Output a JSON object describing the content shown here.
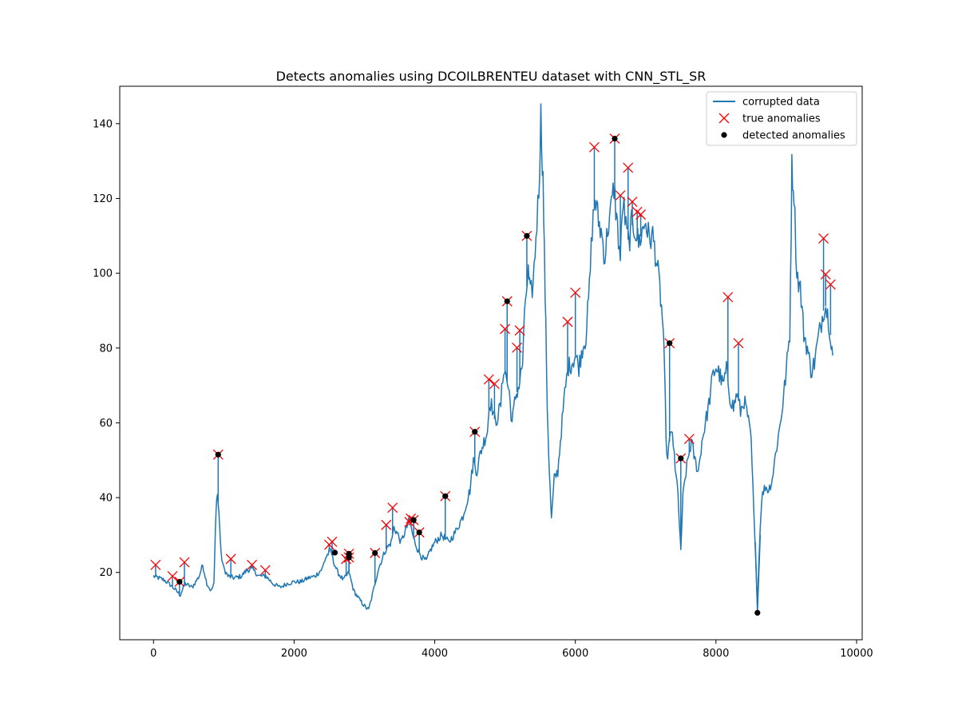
{
  "chart_data": {
    "type": "line",
    "title": "Detects anomalies using DCOILBRENTEU dataset with CNN_STL_SR",
    "xlabel": "",
    "ylabel": "",
    "xlim": [
      -480,
      10080
    ],
    "ylim": [
      2,
      150
    ],
    "xticks": [
      0,
      2000,
      4000,
      6000,
      8000,
      10000
    ],
    "yticks": [
      20,
      40,
      60,
      80,
      100,
      120,
      140
    ],
    "grid": false,
    "legend_position": "upper right",
    "legend": [
      "corrupted data",
      "true anomalies",
      "detected anomalies"
    ],
    "colors": {
      "line": "#1f77b4",
      "true": "#ff0000",
      "detected": "#000000"
    },
    "series": [
      {
        "name": "corrupted data",
        "kind": "line",
        "points": [
          [
            0,
            19
          ],
          [
            150,
            18
          ],
          [
            250,
            16.5
          ],
          [
            380,
            14
          ],
          [
            450,
            17
          ],
          [
            550,
            16
          ],
          [
            650,
            19
          ],
          [
            700,
            22
          ],
          [
            760,
            17
          ],
          [
            820,
            15
          ],
          [
            860,
            17
          ],
          [
            890,
            38
          ],
          [
            910,
            41
          ],
          [
            940,
            33
          ],
          [
            960,
            25
          ],
          [
            1000,
            21
          ],
          [
            1060,
            19
          ],
          [
            1150,
            18.5
          ],
          [
            1250,
            19
          ],
          [
            1320,
            20.5
          ],
          [
            1400,
            21
          ],
          [
            1500,
            19
          ],
          [
            1600,
            19
          ],
          [
            1700,
            17
          ],
          [
            1800,
            16
          ],
          [
            1900,
            17
          ],
          [
            2000,
            17.5
          ],
          [
            2100,
            17.5
          ],
          [
            2200,
            18.5
          ],
          [
            2300,
            19
          ],
          [
            2400,
            21
          ],
          [
            2450,
            24
          ],
          [
            2520,
            26
          ],
          [
            2560,
            23
          ],
          [
            2620,
            20
          ],
          [
            2700,
            18
          ],
          [
            2780,
            20
          ],
          [
            2850,
            15
          ],
          [
            2920,
            13
          ],
          [
            3000,
            11
          ],
          [
            3060,
            10
          ],
          [
            3100,
            13
          ],
          [
            3150,
            17
          ],
          [
            3200,
            21
          ],
          [
            3300,
            26
          ],
          [
            3380,
            28
          ],
          [
            3420,
            32
          ],
          [
            3480,
            30
          ],
          [
            3520,
            28
          ],
          [
            3580,
            31
          ],
          [
            3640,
            34
          ],
          [
            3700,
            29
          ],
          [
            3760,
            26
          ],
          [
            3820,
            24
          ],
          [
            3880,
            23
          ],
          [
            3940,
            26
          ],
          [
            4000,
            28
          ],
          [
            4100,
            30
          ],
          [
            4200,
            28
          ],
          [
            4300,
            31
          ],
          [
            4400,
            35
          ],
          [
            4500,
            42
          ],
          [
            4550,
            50
          ],
          [
            4600,
            47
          ],
          [
            4650,
            52
          ],
          [
            4700,
            55
          ],
          [
            4750,
            58
          ],
          [
            4780,
            66
          ],
          [
            4820,
            64
          ],
          [
            4860,
            60
          ],
          [
            4900,
            62
          ],
          [
            4940,
            65
          ],
          [
            4980,
            75
          ],
          [
            5020,
            72
          ],
          [
            5060,
            68
          ],
          [
            5100,
            60
          ],
          [
            5150,
            67
          ],
          [
            5200,
            70
          ],
          [
            5250,
            76
          ],
          [
            5290,
            93
          ],
          [
            5330,
            100
          ],
          [
            5360,
            94
          ],
          [
            5400,
            97
          ],
          [
            5440,
            110
          ],
          [
            5480,
            122
          ],
          [
            5510,
            142
          ],
          [
            5540,
            125
          ],
          [
            5570,
            95
          ],
          [
            5600,
            65
          ],
          [
            5630,
            47
          ],
          [
            5660,
            34
          ],
          [
            5700,
            45
          ],
          [
            5750,
            47
          ],
          [
            5800,
            58
          ],
          [
            5850,
            68
          ],
          [
            5900,
            75
          ],
          [
            5950,
            76
          ],
          [
            6000,
            78
          ],
          [
            6050,
            75
          ],
          [
            6100,
            80
          ],
          [
            6150,
            83
          ],
          [
            6200,
            96
          ],
          [
            6240,
            112
          ],
          [
            6280,
            120
          ],
          [
            6330,
            114
          ],
          [
            6380,
            110
          ],
          [
            6420,
            104
          ],
          [
            6460,
            112
          ],
          [
            6500,
            116
          ],
          [
            6550,
            123
          ],
          [
            6600,
            112
          ],
          [
            6640,
            104
          ],
          [
            6680,
            120
          ],
          [
            6720,
            112
          ],
          [
            6760,
            108
          ],
          [
            6800,
            113
          ],
          [
            6850,
            112
          ],
          [
            6900,
            108
          ],
          [
            6950,
            111
          ],
          [
            7000,
            114
          ],
          [
            7050,
            109
          ],
          [
            7100,
            110
          ],
          [
            7150,
            104
          ],
          [
            7200,
            96
          ],
          [
            7250,
            85
          ],
          [
            7280,
            65
          ],
          [
            7300,
            50
          ],
          [
            7340,
            55
          ],
          [
            7380,
            58
          ],
          [
            7420,
            47
          ],
          [
            7460,
            42
          ],
          [
            7480,
            32
          ],
          [
            7500,
            26
          ],
          [
            7530,
            40
          ],
          [
            7560,
            45
          ],
          [
            7600,
            50
          ],
          [
            7650,
            55
          ],
          [
            7700,
            50
          ],
          [
            7750,
            47
          ],
          [
            7800,
            55
          ],
          [
            7850,
            60
          ],
          [
            7900,
            65
          ],
          [
            7950,
            72
          ],
          [
            8000,
            75
          ],
          [
            8050,
            73
          ],
          [
            8100,
            70
          ],
          [
            8150,
            74
          ],
          [
            8200,
            67
          ],
          [
            8250,
            64
          ],
          [
            8300,
            68
          ],
          [
            8350,
            63
          ],
          [
            8400,
            66
          ],
          [
            8450,
            62
          ],
          [
            8500,
            55
          ],
          [
            8550,
            30
          ],
          [
            8590,
            12
          ],
          [
            8620,
            28
          ],
          [
            8650,
            40
          ],
          [
            8700,
            43
          ],
          [
            8750,
            42
          ],
          [
            8800,
            45
          ],
          [
            8850,
            52
          ],
          [
            8900,
            58
          ],
          [
            8950,
            65
          ],
          [
            9000,
            74
          ],
          [
            9050,
            84
          ],
          [
            9080,
            128
          ],
          [
            9110,
            122
          ],
          [
            9150,
            100
          ],
          [
            9200,
            96
          ],
          [
            9250,
            84
          ],
          [
            9300,
            80
          ],
          [
            9350,
            74
          ],
          [
            9400,
            76
          ],
          [
            9450,
            82
          ],
          [
            9500,
            87
          ],
          [
            9550,
            92
          ],
          [
            9600,
            88
          ],
          [
            9640,
            82
          ],
          [
            9660,
            78
          ]
        ]
      },
      {
        "name": "true anomalies",
        "kind": "scatter",
        "marker": "x",
        "points": [
          [
            30,
            22
          ],
          [
            270,
            19
          ],
          [
            370,
            17.5
          ],
          [
            440,
            22.7
          ],
          [
            920,
            51.5
          ],
          [
            1100,
            23.6
          ],
          [
            1400,
            22
          ],
          [
            1590,
            20.6
          ],
          [
            2500,
            27.4
          ],
          [
            2540,
            28.2
          ],
          [
            2740,
            23.6
          ],
          [
            2780,
            25
          ],
          [
            2780,
            24
          ],
          [
            3150,
            25.2
          ],
          [
            3310,
            32.7
          ],
          [
            3400,
            37.3
          ],
          [
            3640,
            33.5
          ],
          [
            3660,
            34.4
          ],
          [
            3700,
            34
          ],
          [
            3780,
            30.7
          ],
          [
            4150,
            40.4
          ],
          [
            4570,
            57.6
          ],
          [
            4770,
            71.6
          ],
          [
            4850,
            70.4
          ],
          [
            5000,
            85.1
          ],
          [
            5030,
            92.5
          ],
          [
            5170,
            80.1
          ],
          [
            5210,
            84.7
          ],
          [
            5310,
            110
          ],
          [
            5890,
            87
          ],
          [
            6000,
            94.8
          ],
          [
            6270,
            133.7
          ],
          [
            6560,
            136
          ],
          [
            6640,
            120.8
          ],
          [
            6750,
            128.2
          ],
          [
            6810,
            119.1
          ],
          [
            6880,
            116.4
          ],
          [
            6930,
            115.7
          ],
          [
            7340,
            81.3
          ],
          [
            7500,
            50.5
          ],
          [
            7620,
            55.7
          ],
          [
            8170,
            93.6
          ],
          [
            8320,
            81.3
          ],
          [
            9530,
            109.3
          ],
          [
            9560,
            99.7
          ],
          [
            9630,
            97
          ]
        ]
      },
      {
        "name": "detected anomalies",
        "kind": "scatter",
        "marker": "o",
        "points": [
          [
            370,
            17.5
          ],
          [
            920,
            51.5
          ],
          [
            2580,
            25.3
          ],
          [
            2780,
            25
          ],
          [
            2780,
            24
          ],
          [
            3150,
            25.2
          ],
          [
            3700,
            34
          ],
          [
            3780,
            30.7
          ],
          [
            4150,
            40.4
          ],
          [
            4570,
            57.6
          ],
          [
            5030,
            92.5
          ],
          [
            5310,
            110
          ],
          [
            6560,
            136
          ],
          [
            7340,
            81.3
          ],
          [
            7500,
            50.5
          ],
          [
            8590,
            9.2
          ]
        ]
      }
    ]
  }
}
